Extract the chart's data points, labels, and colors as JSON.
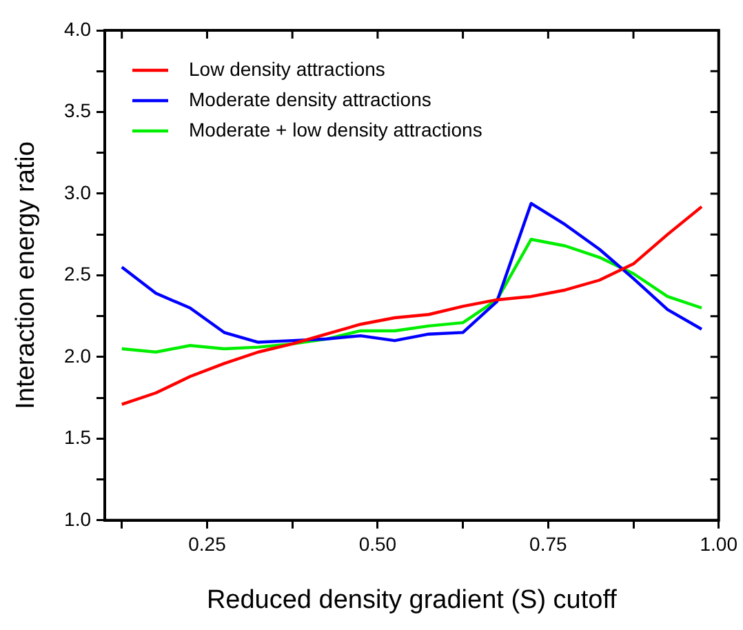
{
  "chart_data": {
    "type": "line",
    "xlabel": "Reduced density gradient (S) cutoff",
    "ylabel": "Interaction energy ratio",
    "x": [
      0.125,
      0.175,
      0.225,
      0.275,
      0.325,
      0.375,
      0.425,
      0.475,
      0.525,
      0.575,
      0.625,
      0.675,
      0.725,
      0.775,
      0.825,
      0.875,
      0.925,
      0.975
    ],
    "series": [
      {
        "name": "Low density attractions",
        "color": "#ff0000",
        "values": [
          1.71,
          1.78,
          1.88,
          1.96,
          2.03,
          2.08,
          2.14,
          2.2,
          2.24,
          2.26,
          2.31,
          2.35,
          2.37,
          2.41,
          2.47,
          2.57,
          2.75,
          2.92
        ]
      },
      {
        "name": "Moderate density attractions",
        "color": "#0000ff",
        "values": [
          2.55,
          2.39,
          2.3,
          2.15,
          2.09,
          2.1,
          2.11,
          2.13,
          2.1,
          2.14,
          2.15,
          2.34,
          2.94,
          2.81,
          2.66,
          2.48,
          2.29,
          2.17
        ]
      },
      {
        "name": "Moderate + low density attractions",
        "color": "#00ee00",
        "values": [
          2.05,
          2.03,
          2.07,
          2.05,
          2.06,
          2.08,
          2.11,
          2.16,
          2.16,
          2.19,
          2.21,
          2.35,
          2.72,
          2.68,
          2.61,
          2.51,
          2.37,
          2.3
        ]
      }
    ],
    "xlim": [
      0.1,
      1.0
    ],
    "xticks": [
      {
        "value": 0.125,
        "label": null
      },
      0.25,
      {
        "value": 0.375,
        "label": null
      },
      {
        "value": 0.5,
        "label": "0.50"
      },
      {
        "value": 0.625,
        "label": null
      },
      0.75,
      {
        "value": 0.875,
        "label": null
      },
      {
        "value": 1,
        "label": "1.00"
      }
    ],
    "ylim": [
      1,
      4
    ],
    "yticks": [
      {
        "value": 1,
        "label": "1.0"
      },
      {
        "value": 1.25,
        "label": null
      },
      {
        "value": 1.5,
        "label": "1.5"
      },
      {
        "value": 1.75,
        "label": null
      },
      {
        "value": 2,
        "label": "2.0"
      },
      {
        "value": 2.25,
        "label": null
      },
      {
        "value": 2.5,
        "label": "2.5"
      },
      {
        "value": 2.75,
        "label": null
      },
      {
        "value": 3,
        "label": "3.0"
      },
      {
        "value": 3.25,
        "label": null
      },
      {
        "value": 3.5,
        "label": "3.5"
      },
      {
        "value": 3.75,
        "label": null
      },
      {
        "value": 4,
        "label": "4.0"
      }
    ],
    "grid": false,
    "legend": "top left",
    "marker": "none",
    "line_style": "solid"
  }
}
